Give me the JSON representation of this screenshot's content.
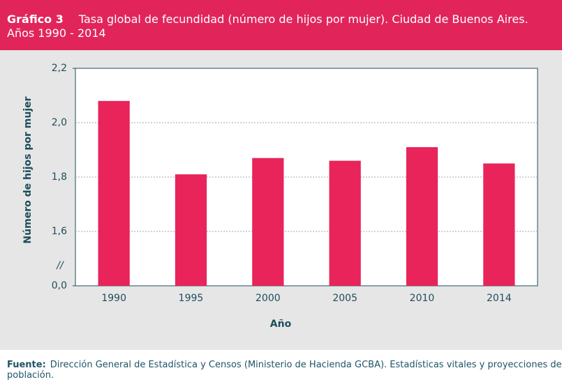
{
  "chart_data": {
    "type": "bar",
    "title_label": "Gráfico 3",
    "title": "Tasa global de fecundidad (número de hijos por mujer). Ciudad de Buenos Aires. Años 1990 - 2014",
    "categories": [
      "1990",
      "1995",
      "2000",
      "2005",
      "2010",
      "2014"
    ],
    "values": [
      2.08,
      1.81,
      1.87,
      1.86,
      1.91,
      1.85
    ],
    "color": "#e8245a",
    "xlabel": "Año",
    "ylabel": "Número de hijos por mujer",
    "ylim": [
      0,
      2.2
    ],
    "axis_break": [
      0,
      1.4
    ],
    "axis_break_label": "//",
    "yticks": [
      {
        "value": 0,
        "label": "0,0"
      },
      {
        "value": 1.6,
        "label": "1,6"
      },
      {
        "value": 1.8,
        "label": "1,8"
      },
      {
        "value": 2.0,
        "label": "2,0"
      },
      {
        "value": 2.2,
        "label": "2,2"
      }
    ],
    "grid": true,
    "source_label": "Fuente:",
    "source": "Dirección General de Estadística y Censos (Ministerio de Hacienda GCBA). Estadísticas vitales y proyecciones de población."
  }
}
